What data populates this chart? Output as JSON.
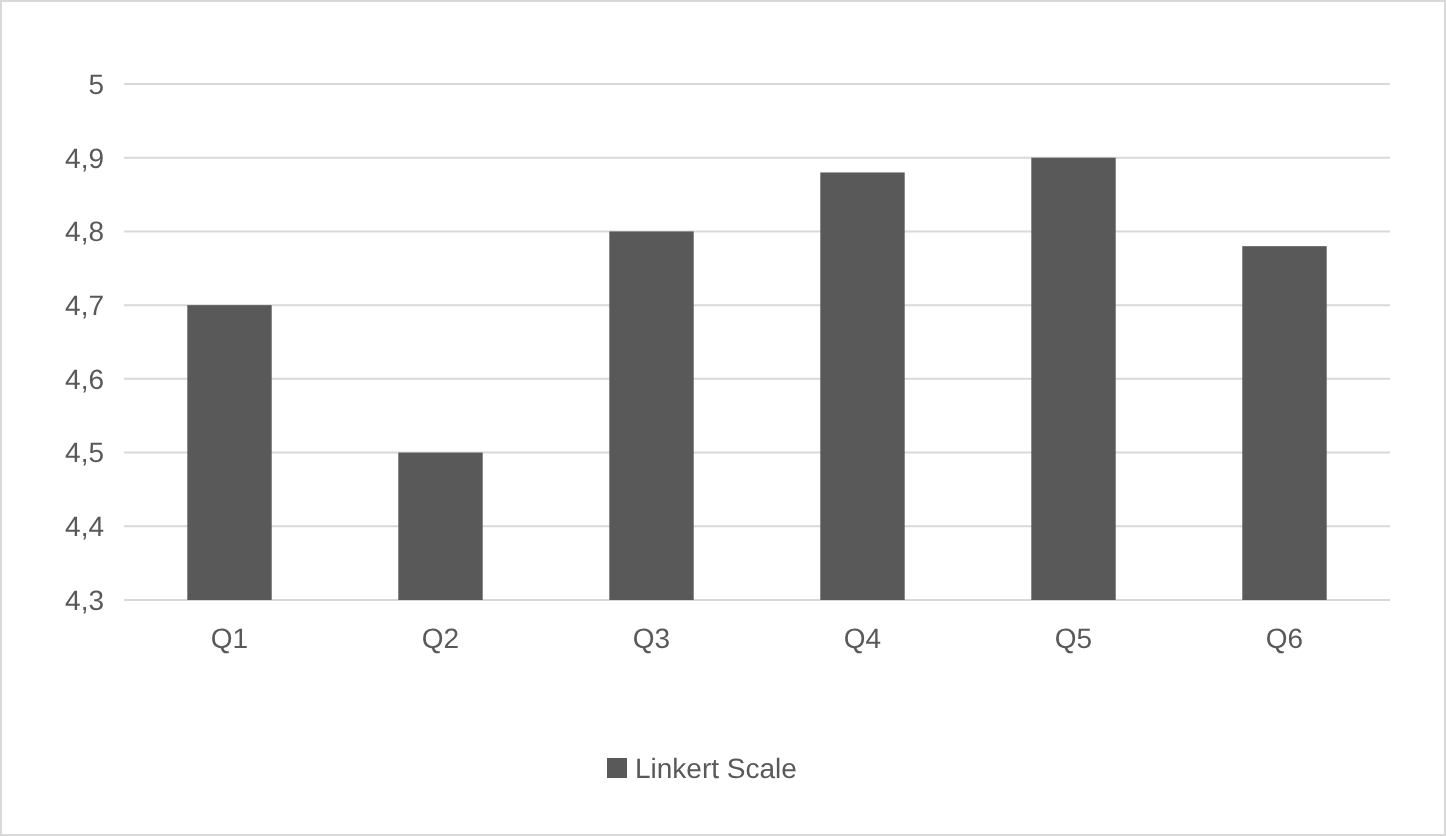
{
  "chart_data": {
    "type": "bar",
    "categories": [
      "Q1",
      "Q2",
      "Q3",
      "Q4",
      "Q5",
      "Q6"
    ],
    "series": [
      {
        "name": "Linkert Scale",
        "color": "#595959",
        "values": [
          4.7,
          4.5,
          4.8,
          4.88,
          4.9,
          4.78
        ]
      }
    ],
    "ylim": [
      4.3,
      5
    ],
    "yticks": [
      {
        "value": 4.3,
        "label": "4,3"
      },
      {
        "value": 4.4,
        "label": "4,4"
      },
      {
        "value": 4.5,
        "label": "4,5"
      },
      {
        "value": 4.6,
        "label": "4,6"
      },
      {
        "value": 4.7,
        "label": "4,7"
      },
      {
        "value": 4.8,
        "label": "4,8"
      },
      {
        "value": 4.9,
        "label": "4,9"
      },
      {
        "value": 5,
        "label": "5"
      }
    ],
    "grid": "y",
    "legend": "bottom"
  }
}
